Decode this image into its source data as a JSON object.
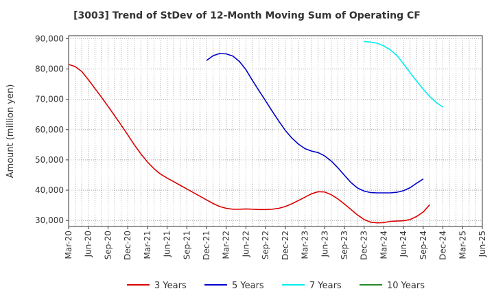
{
  "chart_data": {
    "type": "line",
    "title": "[3003]  Trend of StDev of 12-Month Moving Sum of Operating CF",
    "ylabel": "Amount (million yen)",
    "xlabel": "",
    "ylim": [
      28000,
      91000
    ],
    "y_ticks": [
      30000,
      40000,
      50000,
      60000,
      70000,
      80000,
      90000
    ],
    "y_tick_labels": [
      "30,000",
      "40,000",
      "50,000",
      "60,000",
      "70,000",
      "80,000",
      "90,000"
    ],
    "x_tick_labels": [
      "Mar-20",
      "Jun-20",
      "Sep-20",
      "Dec-20",
      "Mar-21",
      "Jun-21",
      "Sep-21",
      "Dec-21",
      "Mar-22",
      "Jun-22",
      "Sep-22",
      "Dec-22",
      "Mar-23",
      "Jun-23",
      "Sep-23",
      "Dec-23",
      "Mar-24",
      "Jun-24",
      "Sep-24",
      "Dec-24",
      "Mar-25",
      "Jun-25"
    ],
    "x_month_range": [
      0,
      63
    ],
    "grid": true,
    "legend_position": "bottom",
    "series": [
      {
        "name": "3 Years",
        "color": "#dd0000",
        "x_start": 0,
        "values": [
          81500,
          80800,
          79200,
          76500,
          73600,
          70700,
          67700,
          64600,
          61500,
          58300,
          55000,
          52000,
          49300,
          47100,
          45300,
          44000,
          42800,
          41600,
          40400,
          39200,
          38000,
          36800,
          35600,
          34600,
          34000,
          33700,
          33700,
          33800,
          33700,
          33600,
          33600,
          33700,
          34000,
          34600,
          35500,
          36600,
          37700,
          38800,
          39500,
          39400,
          38500,
          37100,
          35400,
          33600,
          31800,
          30300,
          29400,
          29200,
          29300,
          29700,
          29800,
          29900,
          30300,
          31300,
          32800,
          35200
        ]
      },
      {
        "name": "5 Years",
        "color": "#0000cc",
        "x_start": 21,
        "values": [
          82800,
          84400,
          85100,
          85000,
          84300,
          82500,
          79800,
          76200,
          72800,
          69500,
          66100,
          62800,
          59700,
          57200,
          55200,
          53700,
          52900,
          52400,
          51300,
          49600,
          47400,
          44900,
          42500,
          40700,
          39700,
          39200,
          39100,
          39100,
          39100,
          39300,
          39800,
          40800,
          42300,
          43700
        ]
      },
      {
        "name": "7 Years",
        "color": "#00eeee",
        "x_start": 45,
        "values": [
          89100,
          88900,
          88500,
          87600,
          86300,
          84500,
          81700,
          78800,
          76000,
          73300,
          70900,
          68900,
          67400
        ]
      },
      {
        "name": "10 Years",
        "color": "#228822",
        "x_start": 0,
        "values": []
      }
    ]
  }
}
